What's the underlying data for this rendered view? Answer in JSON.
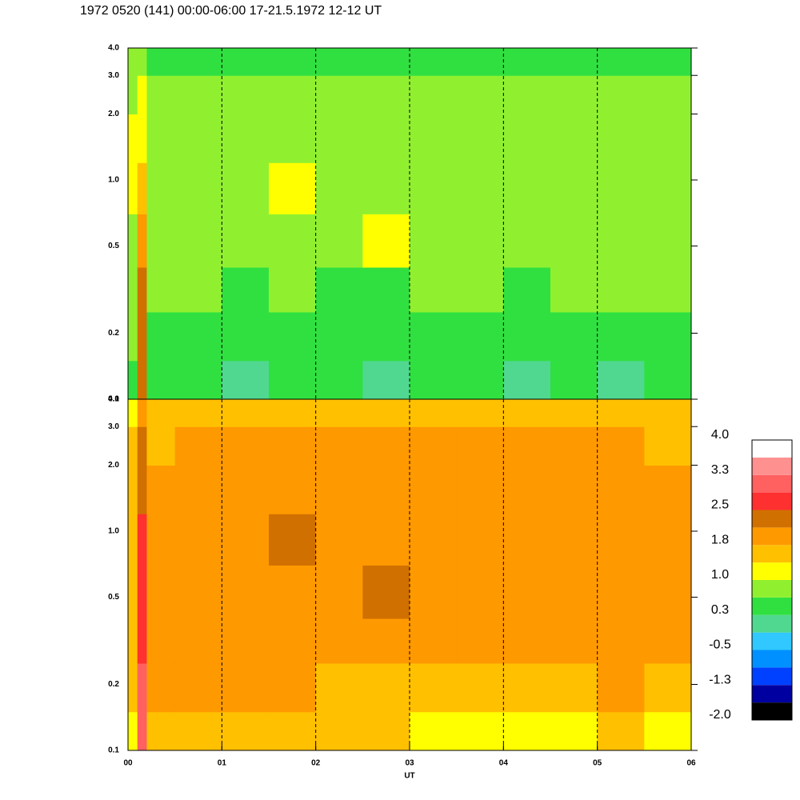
{
  "title": "1972 0520 (141) 00:00-06:00 17-21.5.1972  12-12 UT",
  "chart_data": [
    {
      "type": "heatmap",
      "log_y": true,
      "x": [
        0,
        0.1,
        0.2,
        0.5,
        1,
        1.5,
        2,
        2.5,
        3,
        3.5,
        4,
        4.5,
        5,
        5.5,
        6
      ],
      "y": [
        0.1,
        0.15,
        0.25,
        0.4,
        0.7,
        1.2,
        2,
        3,
        4
      ],
      "values": [
        [
          0.5,
          2.3,
          0.4,
          0.3,
          0.1,
          0.3,
          0.4,
          0.1,
          0.3,
          0.4,
          0.1,
          0.3,
          0.1,
          0.3
        ],
        [
          0.7,
          2.3,
          0.5,
          0.5,
          0.4,
          0.5,
          0.5,
          0.4,
          0.5,
          0.5,
          0.5,
          0.5,
          0.5,
          0.5
        ],
        [
          0.8,
          2.2,
          0.7,
          0.7,
          0.6,
          0.7,
          0.5,
          0.6,
          0.7,
          0.7,
          0.6,
          0.7,
          0.7,
          0.7
        ],
        [
          0.9,
          2.0,
          0.9,
          0.8,
          0.8,
          0.9,
          0.8,
          1.1,
          0.8,
          0.8,
          0.7,
          0.8,
          0.8,
          0.8
        ],
        [
          1.1,
          1.5,
          0.9,
          0.9,
          0.9,
          1.0,
          0.8,
          0.9,
          0.8,
          0.8,
          0.8,
          0.8,
          0.8,
          0.8
        ],
        [
          1.0,
          1.2,
          0.8,
          0.8,
          0.8,
          0.8,
          0.8,
          0.8,
          0.8,
          0.8,
          0.8,
          0.8,
          0.8,
          0.8
        ],
        [
          0.8,
          1.0,
          0.7,
          0.7,
          0.7,
          0.7,
          0.7,
          0.7,
          0.7,
          0.7,
          0.7,
          0.7,
          0.7,
          0.7
        ],
        [
          0.7,
          0.9,
          0.6,
          0.6,
          0.6,
          0.6,
          0.6,
          0.6,
          0.6,
          0.6,
          0.6,
          0.6,
          0.6,
          0.6
        ]
      ],
      "xlim": [
        0,
        6
      ],
      "ylim": [
        0.1,
        4
      ],
      "xgrid": [
        1,
        2,
        3,
        4,
        5
      ],
      "yticks": [
        0.1,
        0.2,
        0.5,
        {
          "value": 1,
          "label": "1.0"
        },
        {
          "value": 2,
          "label": "2.0"
        },
        {
          "value": 3,
          "label": "3.0"
        },
        {
          "value": 4,
          "label": "4.0"
        }
      ]
    },
    {
      "type": "heatmap",
      "log_y": true,
      "x": [
        0,
        0.1,
        0.2,
        0.5,
        1,
        1.5,
        2,
        2.5,
        3,
        3.5,
        4,
        4.5,
        5,
        5.5,
        6
      ],
      "y": [
        0.1,
        0.15,
        0.25,
        0.4,
        0.7,
        1.2,
        2,
        3,
        4
      ],
      "values": [
        [
          1.3,
          3.0,
          1.5,
          1.6,
          1.5,
          1.6,
          1.5,
          1.4,
          1.3,
          1.2,
          1.3,
          1.3,
          1.4,
          1.2
        ],
        [
          1.5,
          3.0,
          1.8,
          1.8,
          1.8,
          1.8,
          1.7,
          1.6,
          1.7,
          1.6,
          1.7,
          1.7,
          1.8,
          1.7
        ],
        [
          1.6,
          2.8,
          1.9,
          1.9,
          1.9,
          2.0,
          1.9,
          1.9,
          1.9,
          1.8,
          1.8,
          1.8,
          1.8,
          1.8
        ],
        [
          1.7,
          2.7,
          1.9,
          2.1,
          2.0,
          2.0,
          2.0,
          2.2,
          1.9,
          1.9,
          1.9,
          1.9,
          1.9,
          1.9
        ],
        [
          1.6,
          2.6,
          1.8,
          2.0,
          2.0,
          2.2,
          1.9,
          2.0,
          1.9,
          1.8,
          1.8,
          1.8,
          1.9,
          1.8
        ],
        [
          1.6,
          2.4,
          1.8,
          1.8,
          1.8,
          1.9,
          1.8,
          1.8,
          1.8,
          1.8,
          1.8,
          1.8,
          1.8,
          1.8
        ],
        [
          1.5,
          2.3,
          1.7,
          1.8,
          1.8,
          1.8,
          1.8,
          1.8,
          1.8,
          1.8,
          1.8,
          1.8,
          1.8,
          1.7
        ],
        [
          1.2,
          1.8,
          1.4,
          1.5,
          1.5,
          1.5,
          1.5,
          1.5,
          1.5,
          1.5,
          1.5,
          1.5,
          1.5,
          1.5
        ]
      ],
      "xlim": [
        0,
        6
      ],
      "ylim": [
        0.1,
        4
      ],
      "xgrid": [
        1,
        2,
        3,
        4,
        5
      ],
      "xticks": [
        {
          "value": 0,
          "label": "00"
        },
        {
          "value": 1,
          "label": "01"
        },
        {
          "value": 2,
          "label": "02"
        },
        {
          "value": 3,
          "label": "03"
        },
        {
          "value": 4,
          "label": "04"
        },
        {
          "value": 5,
          "label": "05"
        },
        {
          "value": 6,
          "label": "06"
        }
      ],
      "xlabel": "UT",
      "yticks": [
        0.1,
        0.2,
        0.5,
        {
          "value": 1,
          "label": "1.0"
        },
        {
          "value": 2,
          "label": "2.0"
        },
        {
          "value": 3,
          "label": "3.0"
        },
        {
          "value": 4,
          "label": "4.0"
        }
      ],
      "colorbar": {
        "zlim": [
          -2,
          4
        ],
        "colors": [
          "#000000",
          "#0000a0",
          "#0040ff",
          "#0090ff",
          "#30c8ff",
          "#50d890",
          "#30e040",
          "#90f030",
          "#ffff00",
          "#ffc000",
          "#ff9900",
          "#d07000",
          "#ff3030",
          "#ff6060",
          "#ff9090",
          "#ffffff"
        ],
        "ticks": [
          {
            "value": -2,
            "label": "-2.0"
          },
          {
            "value": -1.25,
            "label": "-1.3"
          },
          -0.5,
          {
            "value": 0.25,
            "label": "0.3"
          },
          {
            "value": 1,
            "label": "1.0"
          },
          {
            "value": 1.75,
            "label": "1.8"
          },
          2.5,
          {
            "value": 3.25,
            "label": "3.3"
          },
          {
            "value": 4,
            "label": "4.0"
          }
        ]
      }
    }
  ]
}
